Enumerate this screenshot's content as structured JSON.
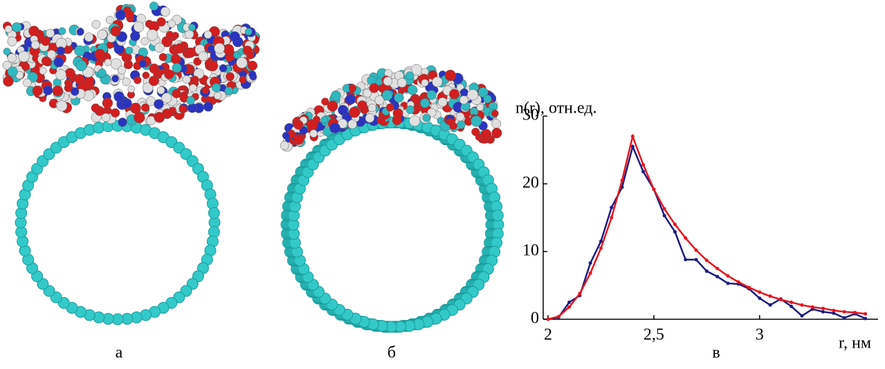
{
  "panels": [
    {
      "label": "а"
    },
    {
      "label": "б"
    }
  ],
  "chart_data": {
    "type": "line",
    "caption": "в",
    "y_label": "n(r), отн.ед.",
    "x_label": "r, нм",
    "x": [
      2.0,
      2.05,
      2.1,
      2.15,
      2.2,
      2.25,
      2.3,
      2.35,
      2.4,
      2.45,
      2.5,
      2.55,
      2.6,
      2.65,
      2.7,
      2.75,
      2.8,
      2.85,
      2.9,
      2.95,
      3.0,
      3.05,
      3.1,
      3.15,
      3.2,
      3.25,
      3.3,
      3.35,
      3.4,
      3.45,
      3.5
    ],
    "series": [
      {
        "color": "#1a1a80",
        "values": [
          0,
          0.3,
          2.5,
          3.5,
          8.3,
          11.5,
          16.5,
          19.5,
          25.5,
          21.8,
          19.2,
          15.3,
          12.9,
          8.8,
          8.8,
          7.1,
          6.3,
          5.3,
          5.2,
          4.5,
          3.1,
          2.1,
          3.0,
          1.9,
          0.5,
          1.5,
          1.1,
          0.9,
          0.2,
          0.8,
          0.1
        ]
      },
      {
        "color": "#e8141e",
        "values": [
          0,
          0.4,
          1.8,
          3.8,
          6.8,
          10.5,
          15,
          20.5,
          27,
          22.8,
          19.2,
          16.3,
          14,
          12,
          10.2,
          8.7,
          7.5,
          6.4,
          5.5,
          4.7,
          4.0,
          3.4,
          2.9,
          2.5,
          2.1,
          1.8,
          1.6,
          1.3,
          1.1,
          1.0,
          0.8
        ]
      }
    ],
    "xlim": [
      1.977,
      3.56
    ],
    "ylim": [
      0,
      30
    ],
    "xticks": [
      2,
      {
        "value": 2.5,
        "label": "2,5"
      },
      3
    ],
    "yticks": [
      0,
      10,
      20,
      30
    ]
  }
}
